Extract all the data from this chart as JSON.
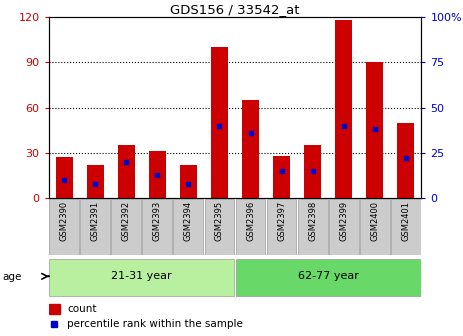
{
  "title": "GDS156 / 33542_at",
  "samples": [
    "GSM2390",
    "GSM2391",
    "GSM2392",
    "GSM2393",
    "GSM2394",
    "GSM2395",
    "GSM2396",
    "GSM2397",
    "GSM2398",
    "GSM2399",
    "GSM2400",
    "GSM2401"
  ],
  "counts": [
    27,
    22,
    35,
    31,
    22,
    100,
    65,
    28,
    35,
    118,
    90,
    50
  ],
  "percentiles_pct": [
    10,
    8,
    20,
    13,
    8,
    40,
    36,
    15,
    15,
    40,
    38,
    22
  ],
  "groups": [
    {
      "label": "21-31 year",
      "start": 0,
      "end": 6,
      "color": "#b8f0a0"
    },
    {
      "label": "62-77 year",
      "start": 6,
      "end": 12,
      "color": "#68d868"
    }
  ],
  "ylim_left": [
    0,
    120
  ],
  "ylim_right": [
    0,
    100
  ],
  "yticks_left": [
    0,
    30,
    60,
    90,
    120
  ],
  "yticks_right": [
    0,
    25,
    50,
    75,
    100
  ],
  "ytick_right_labels": [
    "0",
    "25",
    "50",
    "75",
    "100%"
  ],
  "bar_color": "#cc0000",
  "blue_color": "#0000cc",
  "grid_levels": [
    30,
    60,
    90
  ],
  "bar_width": 0.55,
  "tick_label_bg": "#cccccc",
  "bg_color": "#ffffff"
}
